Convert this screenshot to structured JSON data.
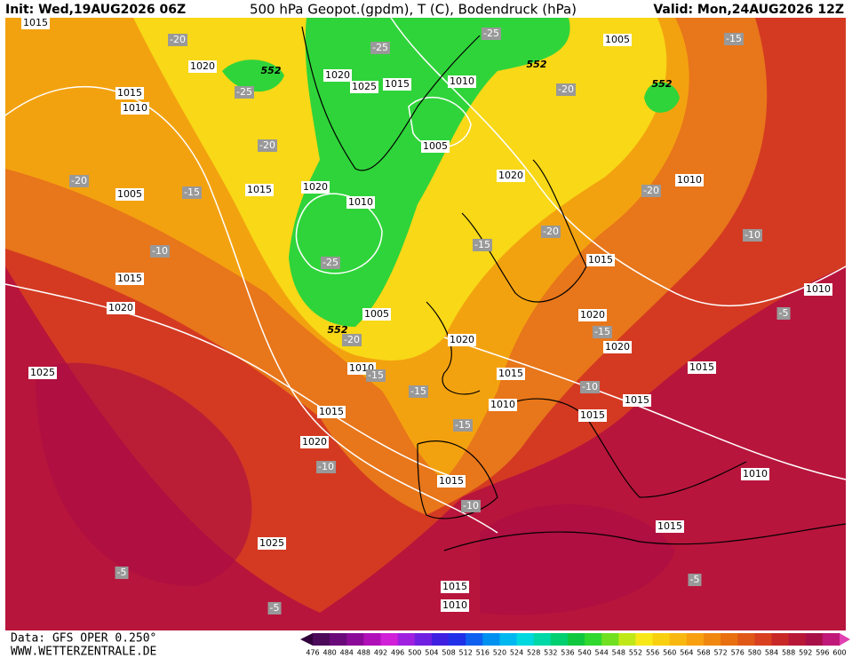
{
  "header": {
    "init": "Init: Wed,19AUG2026 06Z",
    "title": "500 hPa Geopot.(gpdm), T (C), Bodendruck (hPa)",
    "valid": "Valid: Mon,24AUG2026 12Z"
  },
  "footer": {
    "source": "Data: GFS OPER 0.250°",
    "website": "WWW.WETTERZENTRALE.DE"
  },
  "pressure_labels": [
    1015,
    1020,
    1015,
    1010,
    1005,
    1015,
    1020,
    1025,
    1015,
    1010,
    1005,
    1020,
    1010,
    1005,
    1020,
    1010,
    1015,
    1015,
    1020,
    1005,
    1010,
    1025,
    1020,
    1020,
    1020,
    1015,
    1010,
    1015,
    1015,
    1010,
    1015,
    1015,
    1020,
    1015,
    1010,
    1025,
    1015,
    1015,
    1010
  ],
  "temperature_labels": [
    -20,
    -25,
    -25,
    -15,
    -25,
    -20,
    -20,
    -20,
    -15,
    -20,
    -10,
    -15,
    -20,
    -10,
    -25,
    -20,
    -15,
    -15,
    -10,
    -15,
    -15,
    -5,
    -10,
    -10,
    -5,
    -5,
    -5
  ],
  "geopotential_labels": [
    552,
    552,
    552,
    552
  ],
  "legend": {
    "values": [
      476,
      480,
      484,
      488,
      492,
      496,
      500,
      504,
      508,
      512,
      516,
      520,
      524,
      528,
      532,
      536,
      540,
      544,
      548,
      552,
      556,
      560,
      564,
      568,
      572,
      576,
      580,
      584,
      588,
      592,
      596,
      600
    ]
  }
}
